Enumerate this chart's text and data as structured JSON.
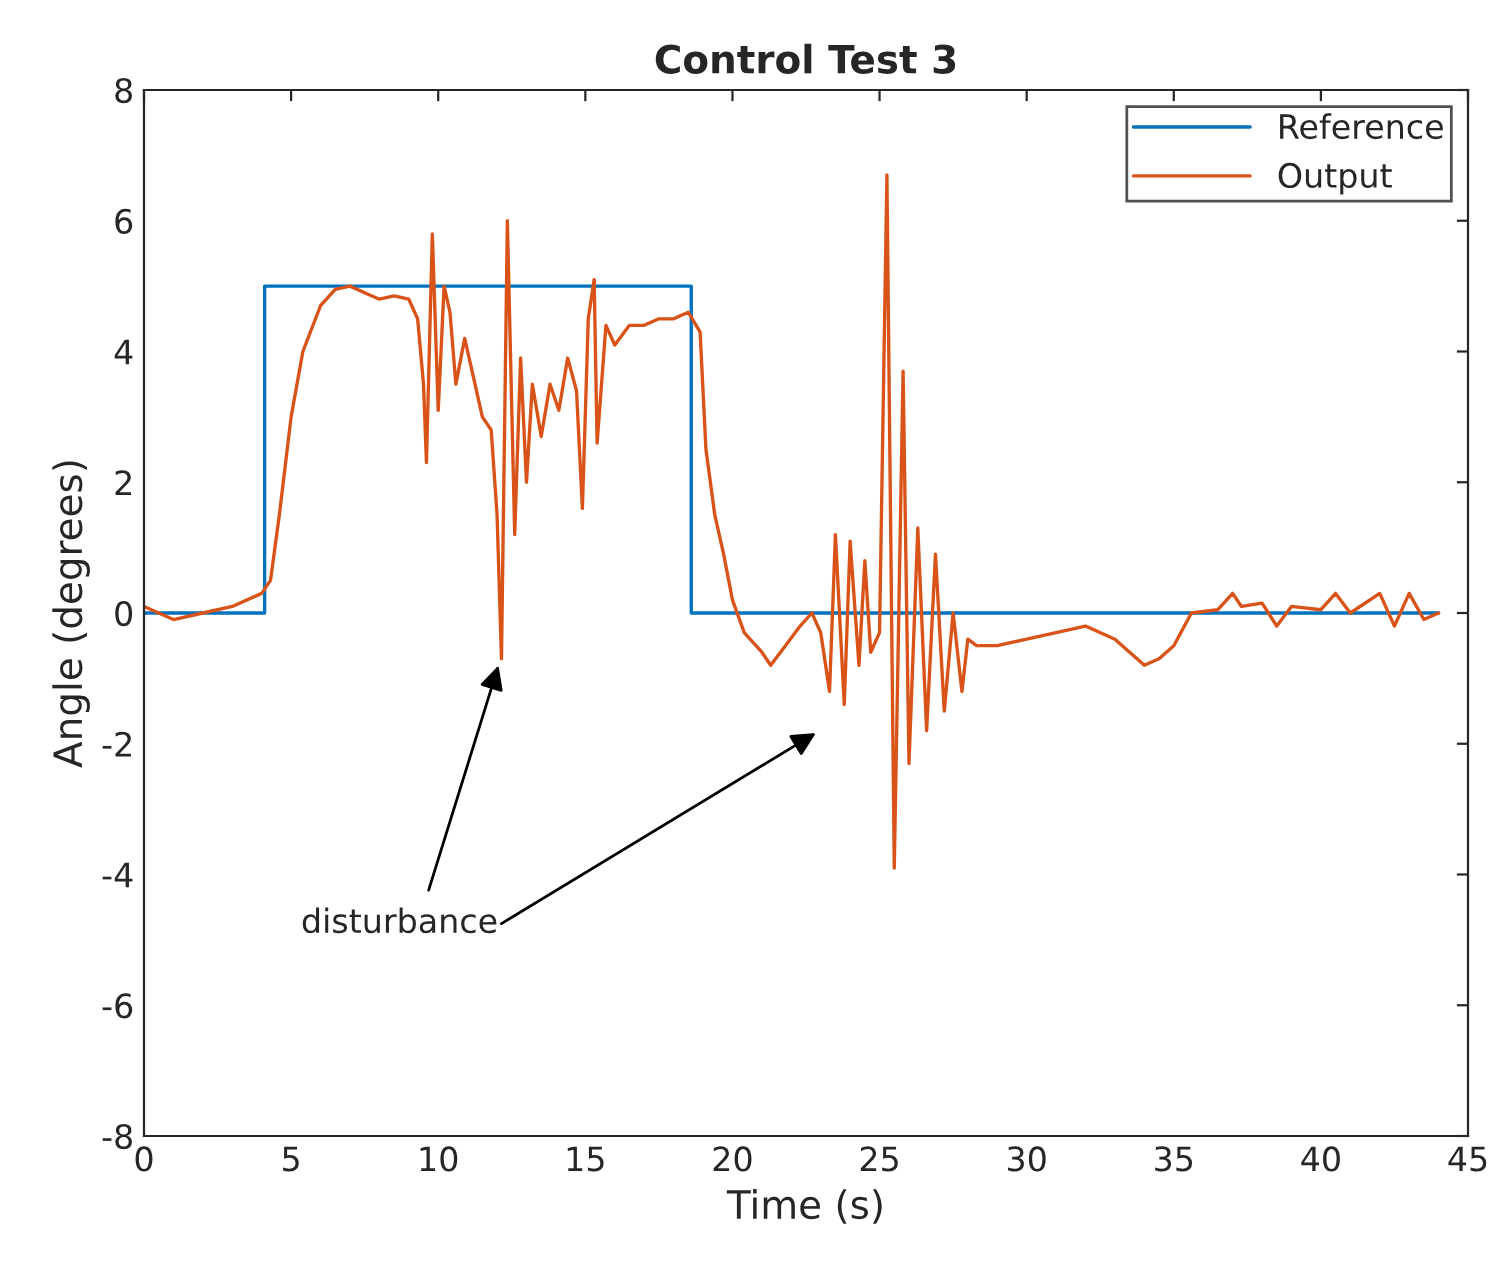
{
  "chart_data": {
    "type": "line",
    "title": "Control Test 3",
    "xlabel": "Time (s)",
    "ylabel": "Angle (degrees)",
    "xlim": [
      0,
      45
    ],
    "xticks": [
      0,
      5,
      10,
      15,
      20,
      25,
      30,
      35,
      40,
      45
    ],
    "ylim": [
      -8,
      8
    ],
    "yticks": [
      -8,
      -6,
      -4,
      -2,
      0,
      2,
      4,
      6,
      8
    ],
    "grid": false,
    "legend": "top right",
    "marker": "none",
    "line_style": "solid",
    "series": [
      {
        "name": "Reference",
        "color": "#0072bd",
        "x": [
          0,
          4.1,
          4.1,
          18.6,
          18.6,
          44
        ],
        "values": [
          0,
          0,
          5,
          5,
          0,
          0
        ]
      },
      {
        "name": "Output",
        "color": "#d95319",
        "x": [
          0,
          1,
          2,
          3,
          4,
          4.3,
          4.6,
          5,
          5.4,
          6,
          6.5,
          7,
          7.5,
          8,
          8.5,
          9,
          9.3,
          9.5,
          9.6,
          9.8,
          10.0,
          10.2,
          10.4,
          10.6,
          10.9,
          11.2,
          11.5,
          11.8,
          12.0,
          12.15,
          12.35,
          12.6,
          12.8,
          13.0,
          13.2,
          13.5,
          13.8,
          14.1,
          14.4,
          14.7,
          14.9,
          15.1,
          15.3,
          15.4,
          15.7,
          16,
          16.5,
          17,
          17.5,
          18,
          18.5,
          18.9,
          19.1,
          19.4,
          19.7,
          20,
          20.4,
          21,
          21.3,
          21.8,
          22.3,
          22.7,
          23,
          23.3,
          23.5,
          23.8,
          24.0,
          24.3,
          24.5,
          24.7,
          25.0,
          25.25,
          25.5,
          25.8,
          26.0,
          26.3,
          26.6,
          26.9,
          27.2,
          27.5,
          27.8,
          28.0,
          28.3,
          29,
          30,
          31,
          32,
          33,
          34,
          34.5,
          35,
          35.6,
          36.5,
          37,
          37.3,
          38,
          38.5,
          39,
          40,
          40.5,
          41,
          42,
          42.5,
          43,
          43.5,
          44
        ],
        "values": [
          0.1,
          -0.1,
          0,
          0.1,
          0.3,
          0.5,
          1.5,
          3,
          4.0,
          4.7,
          4.95,
          5.0,
          4.9,
          4.8,
          4.85,
          4.8,
          4.5,
          3.5,
          2.3,
          5.8,
          3.1,
          5.0,
          4.6,
          3.5,
          4.2,
          3.6,
          3.0,
          2.8,
          1.5,
          -0.7,
          6.0,
          1.2,
          3.9,
          2.0,
          3.5,
          2.7,
          3.5,
          3.1,
          3.9,
          3.4,
          1.6,
          4.5,
          5.1,
          2.6,
          4.4,
          4.1,
          4.4,
          4.4,
          4.5,
          4.5,
          4.6,
          4.3,
          2.5,
          1.5,
          0.9,
          0.2,
          -0.3,
          -0.6,
          -0.8,
          -0.5,
          -0.2,
          0.0,
          -0.3,
          -1.2,
          1.2,
          -1.4,
          1.1,
          -0.8,
          0.8,
          -0.6,
          -0.3,
          6.7,
          -3.9,
          3.7,
          -2.3,
          1.3,
          -1.8,
          0.9,
          -1.5,
          0.0,
          -1.2,
          -0.4,
          -0.5,
          -0.5,
          -0.4,
          -0.3,
          -0.2,
          -0.4,
          -0.8,
          -0.7,
          -0.5,
          0,
          0.05,
          0.3,
          0.1,
          0.15,
          -0.2,
          0.1,
          0.05,
          0.3,
          0.0,
          0.3,
          -0.2,
          0.3,
          -0.1,
          0
        ]
      }
    ],
    "annotations": [
      "disturbance"
    ]
  }
}
